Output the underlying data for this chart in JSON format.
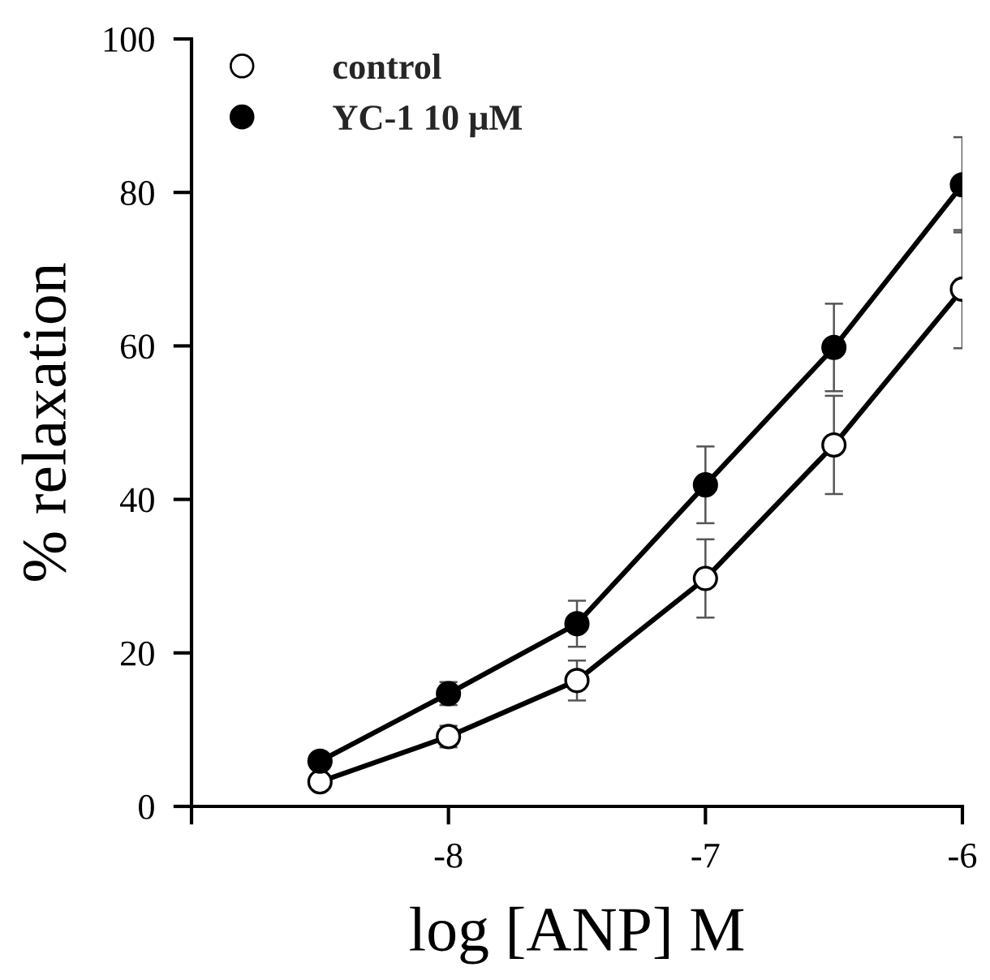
{
  "chart_data": {
    "type": "line",
    "xlabel": "log [ANP] M",
    "ylabel": "% relaxation",
    "x": [
      -8.5,
      -8,
      -7.5,
      -7,
      -6.5,
      -6
    ],
    "series": [
      {
        "name": "control",
        "color": "#000000",
        "marker": "circle",
        "values": [
          3.2,
          9.1,
          16.4,
          29.7,
          47.1,
          67.4
        ],
        "errors": [
          null,
          1.4,
          2.6,
          5.1,
          6.4,
          7.7
        ]
      },
      {
        "name": "YC-1 10 μM",
        "color": "#000000",
        "marker": "circle",
        "values": [
          5.9,
          14.7,
          23.8,
          41.9,
          59.8,
          81.0
        ],
        "errors": [
          null,
          1.5,
          3.0,
          5.0,
          5.7,
          6.2
        ]
      }
    ],
    "xlim": [
      -9,
      -6
    ],
    "xticks": [
      {
        "value": -9,
        "label": null
      },
      -8,
      -7,
      -6
    ],
    "ylim": [
      0,
      100
    ],
    "yticks": [
      0,
      20,
      40,
      60,
      80,
      100
    ],
    "grid": false,
    "legend": "top left",
    "line_style": "solid"
  }
}
